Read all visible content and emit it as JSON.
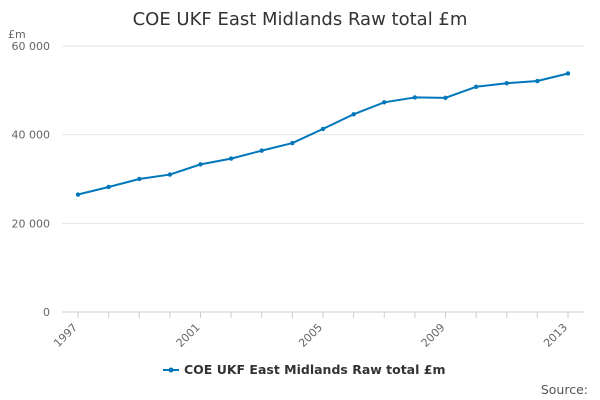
{
  "chart_data": {
    "type": "line",
    "title": "COE UKF East Midlands Raw total £m",
    "ylabel": "£m",
    "xlabel": "",
    "x": [
      1997,
      1998,
      1999,
      2000,
      2001,
      2002,
      2003,
      2004,
      2005,
      2006,
      2007,
      2008,
      2009,
      2010,
      2011,
      2012,
      2013
    ],
    "series": [
      {
        "name": "COE UKF East Midlands Raw total £m",
        "color": "#0077bb",
        "values": [
          26500,
          28200,
          30000,
          31000,
          33300,
          34600,
          36400,
          38100,
          41300,
          44600,
          47300,
          48400,
          48300,
          50800,
          51600,
          52100,
          53800
        ]
      }
    ],
    "ylim": [
      0,
      60000
    ],
    "yticks": [
      0,
      20000,
      40000,
      60000
    ],
    "ytick_labels": [
      "0",
      "20 000",
      "40 000",
      "60 000"
    ],
    "xticks": [
      "1997",
      "2001",
      "2005",
      "2009",
      "2013"
    ],
    "grid": true,
    "legend_position": "bottom-center",
    "source_label": "Source:"
  }
}
